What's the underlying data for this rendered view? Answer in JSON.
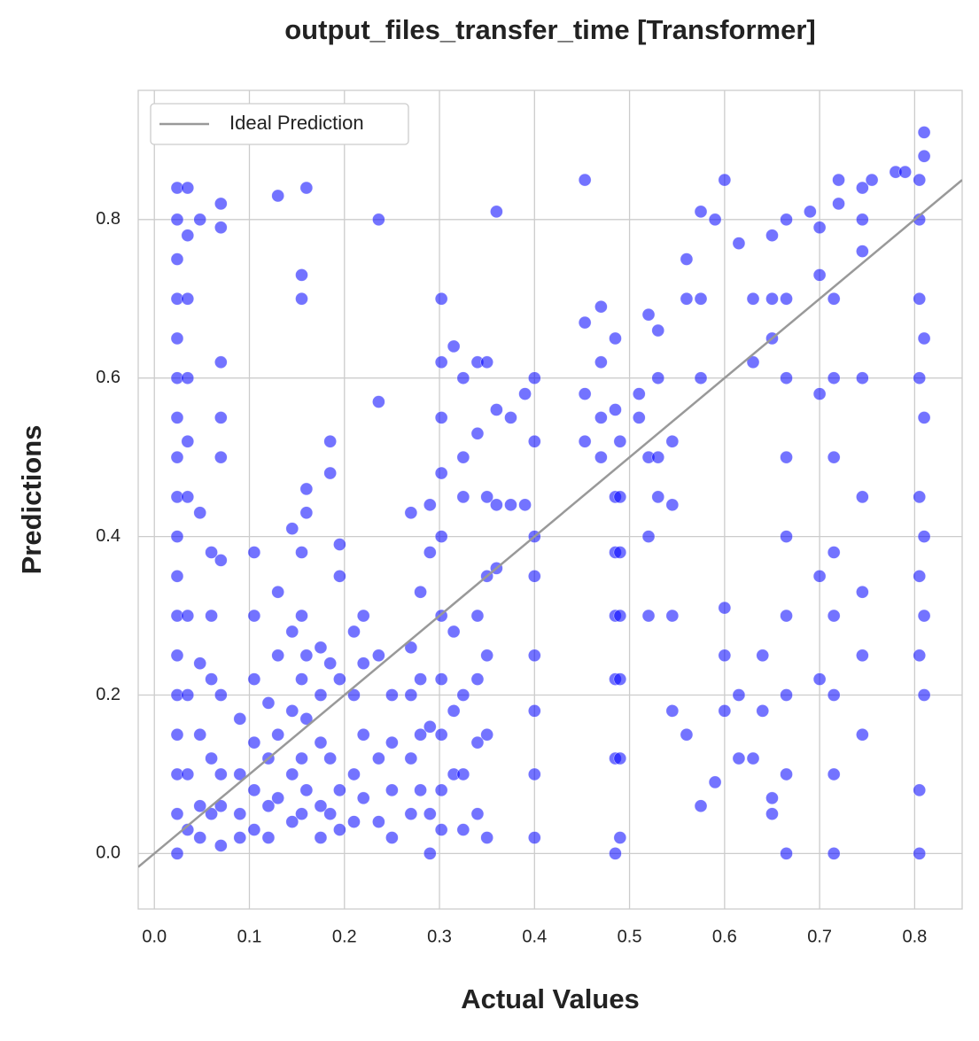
{
  "chart_data": {
    "type": "scatter",
    "title": "output_files_transfer_time [Transformer]",
    "x_label": "Actual Values",
    "y_label": "Predictions",
    "xlim": [
      -0.017,
      0.85
    ],
    "ylim": [
      -0.07,
      0.963
    ],
    "xticks": [
      {
        "value": 0,
        "label": "0.0"
      },
      0.1,
      0.2,
      0.3,
      0.4,
      0.5,
      0.6,
      0.7,
      0.8
    ],
    "yticks": [
      {
        "value": 0,
        "label": "0.0"
      },
      0.2,
      0.4,
      0.6,
      0.8
    ],
    "grid": true,
    "legend": "upper left",
    "series": [
      {
        "color": "#0000ff",
        "x": [
          0.024,
          0.024,
          0.024,
          0.024,
          0.024,
          0.024,
          0.024,
          0.024,
          0.024,
          0.024,
          0.024,
          0.024,
          0.024,
          0.024,
          0.024,
          0.024,
          0.024,
          0.024,
          0.035,
          0.035,
          0.035,
          0.035,
          0.035,
          0.035,
          0.035,
          0.035,
          0.035,
          0.035,
          0.048,
          0.048,
          0.048,
          0.048,
          0.048,
          0.048,
          0.06,
          0.06,
          0.06,
          0.06,
          0.06,
          0.07,
          0.07,
          0.07,
          0.07,
          0.07,
          0.07,
          0.07,
          0.07,
          0.07,
          0.07,
          0.09,
          0.09,
          0.09,
          0.09,
          0.105,
          0.105,
          0.105,
          0.105,
          0.105,
          0.105,
          0.12,
          0.12,
          0.12,
          0.12,
          0.13,
          0.13,
          0.13,
          0.13,
          0.13,
          0.145,
          0.145,
          0.145,
          0.145,
          0.145,
          0.155,
          0.155,
          0.155,
          0.155,
          0.155,
          0.155,
          0.155,
          0.16,
          0.16,
          0.16,
          0.16,
          0.16,
          0.16,
          0.175,
          0.175,
          0.175,
          0.175,
          0.175,
          0.185,
          0.185,
          0.185,
          0.185,
          0.185,
          0.195,
          0.195,
          0.195,
          0.195,
          0.195,
          0.21,
          0.21,
          0.21,
          0.21,
          0.22,
          0.22,
          0.22,
          0.22,
          0.236,
          0.236,
          0.236,
          0.236,
          0.236,
          0.25,
          0.25,
          0.25,
          0.25,
          0.27,
          0.27,
          0.27,
          0.27,
          0.27,
          0.28,
          0.28,
          0.28,
          0.28,
          0.29,
          0.29,
          0.29,
          0.29,
          0.29,
          0.302,
          0.302,
          0.302,
          0.302,
          0.302,
          0.302,
          0.302,
          0.302,
          0.302,
          0.302,
          0.315,
          0.315,
          0.315,
          0.315,
          0.325,
          0.325,
          0.325,
          0.325,
          0.325,
          0.325,
          0.34,
          0.34,
          0.34,
          0.34,
          0.34,
          0.34,
          0.35,
          0.35,
          0.35,
          0.35,
          0.35,
          0.35,
          0.36,
          0.36,
          0.36,
          0.36,
          0.375,
          0.375,
          0.39,
          0.39,
          0.4,
          0.4,
          0.4,
          0.4,
          0.4,
          0.4,
          0.4,
          0.4,
          0.453,
          0.453,
          0.453,
          0.453,
          0.47,
          0.47,
          0.47,
          0.47,
          0.485,
          0.485,
          0.485,
          0.485,
          0.485,
          0.485,
          0.485,
          0.485,
          0.49,
          0.49,
          0.49,
          0.49,
          0.49,
          0.49,
          0.49,
          0.51,
          0.51,
          0.52,
          0.52,
          0.52,
          0.52,
          0.53,
          0.53,
          0.53,
          0.53,
          0.545,
          0.545,
          0.545,
          0.545,
          0.56,
          0.56,
          0.56,
          0.575,
          0.575,
          0.575,
          0.575,
          0.59,
          0.59,
          0.6,
          0.6,
          0.6,
          0.6,
          0.615,
          0.615,
          0.615,
          0.63,
          0.63,
          0.63,
          0.64,
          0.64,
          0.65,
          0.65,
          0.65,
          0.65,
          0.65,
          0.665,
          0.665,
          0.665,
          0.665,
          0.665,
          0.665,
          0.665,
          0.665,
          0.665,
          0.69,
          0.7,
          0.7,
          0.7,
          0.7,
          0.7,
          0.715,
          0.715,
          0.715,
          0.715,
          0.715,
          0.715,
          0.715,
          0.715,
          0.72,
          0.72,
          0.745,
          0.745,
          0.745,
          0.745,
          0.745,
          0.745,
          0.745,
          0.745,
          0.755,
          0.78,
          0.79,
          0.805,
          0.805,
          0.805,
          0.805,
          0.805,
          0.805,
          0.805,
          0.805,
          0.805,
          0.81,
          0.81,
          0.81,
          0.81,
          0.81,
          0.81,
          0.81
        ],
        "values": [
          0.84,
          0.8,
          0.75,
          0.7,
          0.65,
          0.6,
          0.55,
          0.5,
          0.45,
          0.4,
          0.35,
          0.3,
          0.25,
          0.2,
          0.15,
          0.1,
          0.05,
          0,
          0.84,
          0.78,
          0.7,
          0.6,
          0.52,
          0.45,
          0.3,
          0.2,
          0.1,
          0.03,
          0.8,
          0.43,
          0.24,
          0.15,
          0.06,
          0.02,
          0.38,
          0.3,
          0.22,
          0.12,
          0.05,
          0.82,
          0.79,
          0.62,
          0.55,
          0.5,
          0.37,
          0.2,
          0.1,
          0.06,
          0.01,
          0.17,
          0.1,
          0.05,
          0.02,
          0.38,
          0.3,
          0.22,
          0.14,
          0.08,
          0.03,
          0.19,
          0.12,
          0.06,
          0.02,
          0.83,
          0.33,
          0.25,
          0.15,
          0.07,
          0.41,
          0.28,
          0.18,
          0.1,
          0.04,
          0.73,
          0.7,
          0.38,
          0.3,
          0.22,
          0.12,
          0.05,
          0.84,
          0.46,
          0.43,
          0.25,
          0.17,
          0.08,
          0.26,
          0.2,
          0.14,
          0.06,
          0.02,
          0.52,
          0.48,
          0.24,
          0.12,
          0.05,
          0.39,
          0.35,
          0.22,
          0.08,
          0.03,
          0.28,
          0.2,
          0.1,
          0.04,
          0.3,
          0.24,
          0.15,
          0.07,
          0.8,
          0.57,
          0.25,
          0.12,
          0.04,
          0.2,
          0.14,
          0.08,
          0.02,
          0.43,
          0.26,
          0.2,
          0.12,
          0.05,
          0.33,
          0.22,
          0.15,
          0.08,
          0.44,
          0.38,
          0.16,
          0.05,
          0,
          0.7,
          0.62,
          0.55,
          0.48,
          0.4,
          0.3,
          0.22,
          0.15,
          0.08,
          0.03,
          0.64,
          0.28,
          0.18,
          0.1,
          0.6,
          0.5,
          0.45,
          0.2,
          0.1,
          0.03,
          0.62,
          0.53,
          0.3,
          0.22,
          0.14,
          0.05,
          0.62,
          0.45,
          0.35,
          0.25,
          0.15,
          0.02,
          0.81,
          0.56,
          0.44,
          0.36,
          0.55,
          0.44,
          0.58,
          0.44,
          0.6,
          0.52,
          0.4,
          0.35,
          0.25,
          0.18,
          0.1,
          0.02,
          0.85,
          0.67,
          0.58,
          0.52,
          0.69,
          0.62,
          0.55,
          0.5,
          0.65,
          0.56,
          0.45,
          0.38,
          0.3,
          0.22,
          0.12,
          0,
          0.52,
          0.45,
          0.38,
          0.3,
          0.22,
          0.12,
          0.02,
          0.58,
          0.55,
          0.68,
          0.5,
          0.4,
          0.3,
          0.66,
          0.6,
          0.5,
          0.45,
          0.52,
          0.44,
          0.3,
          0.18,
          0.75,
          0.7,
          0.15,
          0.81,
          0.7,
          0.6,
          0.06,
          0.8,
          0.09,
          0.85,
          0.31,
          0.25,
          0.18,
          0.77,
          0.2,
          0.12,
          0.7,
          0.62,
          0.12,
          0.25,
          0.18,
          0.78,
          0.7,
          0.65,
          0.07,
          0.05,
          0.8,
          0.7,
          0.6,
          0.5,
          0.4,
          0.3,
          0.2,
          0.1,
          0,
          0.81,
          0.79,
          0.73,
          0.58,
          0.35,
          0.22,
          0.7,
          0.6,
          0.5,
          0.38,
          0.3,
          0.2,
          0.1,
          0,
          0.85,
          0.82,
          0.84,
          0.8,
          0.76,
          0.6,
          0.45,
          0.33,
          0.25,
          0.15,
          0.85,
          0.86,
          0.86,
          0.85,
          0.8,
          0.7,
          0.6,
          0.45,
          0.35,
          0.25,
          0.08,
          0,
          0.91,
          0.88,
          0.65,
          0.55,
          0.4,
          0.3,
          0.2
        ]
      },
      {
        "name": "Ideal Prediction",
        "type": "line",
        "color": "#999999",
        "x": [
          -0.017,
          0.85
        ],
        "values": [
          -0.017,
          0.85
        ]
      }
    ]
  }
}
